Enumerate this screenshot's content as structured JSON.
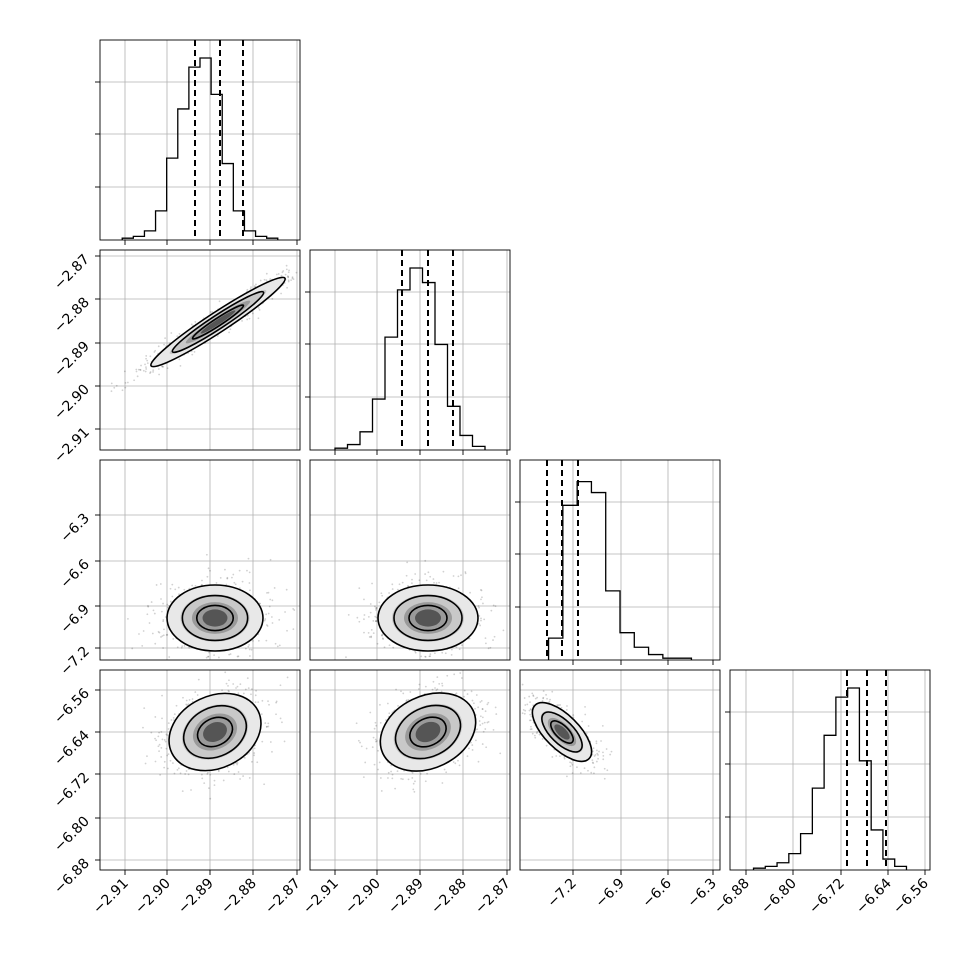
{
  "chart_data": {
    "type": "corner",
    "parameters": 4,
    "histograms": [
      {
        "param": 0,
        "bins_x": [
          -2.914,
          -2.91,
          -2.906,
          -2.902,
          -2.898,
          -2.894,
          -2.89,
          -2.886,
          -2.882,
          -2.878,
          -2.874,
          -2.87
        ],
        "counts": [
          0.01,
          0.03,
          0.15,
          0.45,
          0.7,
          0.95,
          1.0,
          0.85,
          0.4,
          0.16,
          0.06,
          0.02
        ],
        "quantiles": [
          -2.8935,
          -2.887,
          -2.8815
        ]
      },
      {
        "param": 1,
        "counts": [
          0.01,
          0.03,
          0.1,
          0.28,
          0.62,
          0.88,
          1.0,
          0.92,
          0.58,
          0.24,
          0.08,
          0.02
        ],
        "quantiles": [
          -2.8935,
          -2.887,
          -2.8815
        ]
      },
      {
        "param": 2,
        "counts": [
          0.12,
          0.85,
          0.98,
          0.92,
          0.38,
          0.15,
          0.07,
          0.03,
          0.01,
          0.01
        ],
        "quantiles": [
          -7.15,
          -7.08,
          -7.0
        ]
      },
      {
        "param": 3,
        "counts": [
          0.01,
          0.02,
          0.04,
          0.09,
          0.2,
          0.45,
          0.74,
          0.95,
          1.0,
          0.6,
          0.22,
          0.06,
          0.02
        ],
        "quantiles": [
          -6.677,
          -6.64,
          -6.605
        ]
      }
    ],
    "axes_ticks": {
      "p0": [
        "−2.91",
        "−2.90",
        "−2.89",
        "−2.88",
        "−2.87"
      ],
      "p1": [
        "−2.87",
        "−2.88",
        "−2.89",
        "−2.90",
        "−2.91"
      ],
      "p2": [
        "−6.3",
        "−6.6",
        "−6.9",
        "−7.2"
      ],
      "p3": [
        "−6.56",
        "−6.64",
        "−6.72",
        "−6.80",
        "−6.88"
      ],
      "p2_x": [
        "−7.2",
        "−6.9",
        "−6.6",
        "−6.3"
      ],
      "p3_x": [
        "−6.88",
        "−6.80",
        "−6.72",
        "−6.64",
        "−6.56"
      ]
    }
  }
}
